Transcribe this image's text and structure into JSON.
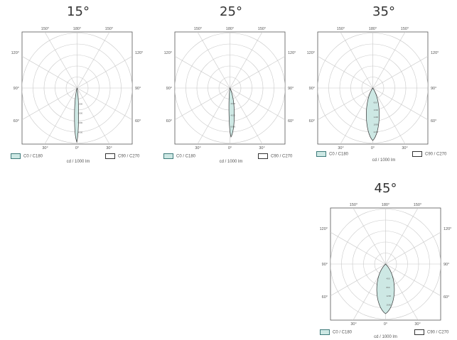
{
  "legend": {
    "c0": "C0 / C180",
    "c90": "C90 / C270"
  },
  "unit": "cd / 1000 lm",
  "angle_labels": {
    "top_left": "150°",
    "top": "180°",
    "top_right": "150°",
    "upper_left": "120°",
    "upper_right": "120°",
    "mid_left": "90°",
    "mid_right": "90°",
    "lower_left": "60°",
    "lower_right": "60°",
    "bottom_left": "30°",
    "bottom": "0°",
    "bottom_right": "30°"
  },
  "colors": {
    "c0_fill": "#cde8e4",
    "c0_stroke": "#333333",
    "grid": "#c8c8c8",
    "frame": "#555555"
  },
  "chart_data": [
    {
      "type": "polar",
      "title": "15°",
      "radial_tick_labels": [
        "1000",
        "2000",
        "3000",
        "4000"
      ],
      "series": [
        {
          "name": "C0 / C180",
          "beam_angle_deg": 15
        }
      ]
    },
    {
      "type": "polar",
      "title": "25°",
      "radial_tick_labels": [
        "2000",
        "4000",
        "6000"
      ],
      "series": [
        {
          "name": "C0 / C180",
          "beam_angle_deg": 25
        }
      ]
    },
    {
      "type": "polar",
      "title": "35°",
      "radial_tick_labels": [
        "600",
        "1000",
        "1400",
        "1800",
        "2200"
      ],
      "series": [
        {
          "name": "C0 / C180",
          "beam_angle_deg": 35
        }
      ]
    },
    {
      "type": "polar",
      "title": "45°",
      "radial_tick_labels": [
        "400",
        "800",
        "1200",
        "1600"
      ],
      "series": [
        {
          "name": "C0 / C180",
          "beam_angle_deg": 45
        }
      ]
    }
  ]
}
